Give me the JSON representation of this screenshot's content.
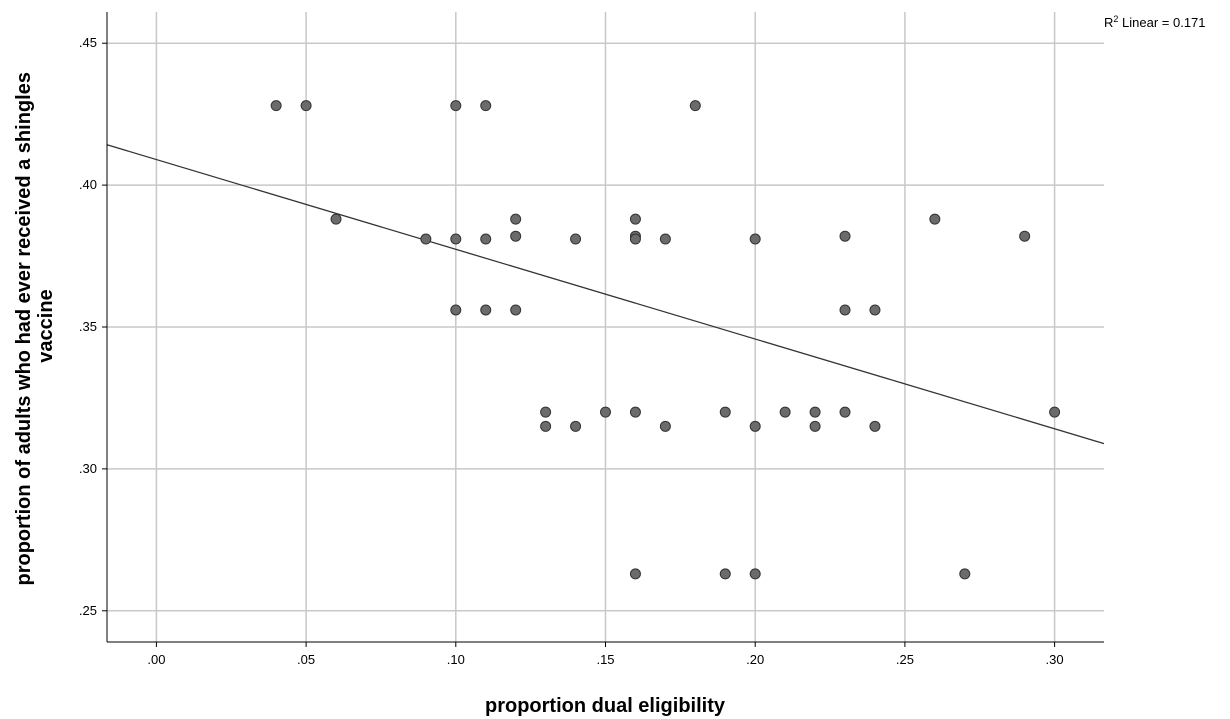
{
  "chart_data": {
    "type": "scatter",
    "title": "",
    "xlabel": "proportion dual eligibility",
    "ylabel_lines": [
      "proportion of adults who had ever received a shingles",
      "vaccine"
    ],
    "xlim": [
      -0.0165,
      0.3165
    ],
    "ylim": [
      0.239,
      0.461
    ],
    "x_ticks": [
      0.0,
      0.05,
      0.1,
      0.15,
      0.2,
      0.25,
      0.3
    ],
    "x_tick_labels": [
      ".00",
      ".05",
      ".10",
      ".15",
      ".20",
      ".25",
      ".30"
    ],
    "y_ticks": [
      0.25,
      0.3,
      0.35,
      0.4,
      0.45
    ],
    "y_tick_labels": [
      ".25",
      ".30",
      ".35",
      ".40",
      ".45"
    ],
    "grid": true,
    "fit_line": {
      "label_prefix": "R",
      "label_sup": "2",
      "label_suffix": " Linear = 0.171",
      "intercept": 0.409,
      "slope": -0.3162
    },
    "points": [
      {
        "x": 0.04,
        "y": 0.428
      },
      {
        "x": 0.05,
        "y": 0.428
      },
      {
        "x": 0.1,
        "y": 0.428
      },
      {
        "x": 0.11,
        "y": 0.428
      },
      {
        "x": 0.18,
        "y": 0.428
      },
      {
        "x": 0.06,
        "y": 0.388
      },
      {
        "x": 0.12,
        "y": 0.388
      },
      {
        "x": 0.16,
        "y": 0.388
      },
      {
        "x": 0.26,
        "y": 0.388
      },
      {
        "x": 0.12,
        "y": 0.382
      },
      {
        "x": 0.16,
        "y": 0.382
      },
      {
        "x": 0.23,
        "y": 0.382
      },
      {
        "x": 0.29,
        "y": 0.382
      },
      {
        "x": 0.09,
        "y": 0.381
      },
      {
        "x": 0.1,
        "y": 0.381
      },
      {
        "x": 0.11,
        "y": 0.381
      },
      {
        "x": 0.14,
        "y": 0.381
      },
      {
        "x": 0.16,
        "y": 0.381
      },
      {
        "x": 0.17,
        "y": 0.381
      },
      {
        "x": 0.2,
        "y": 0.381
      },
      {
        "x": 0.1,
        "y": 0.356
      },
      {
        "x": 0.11,
        "y": 0.356
      },
      {
        "x": 0.12,
        "y": 0.356
      },
      {
        "x": 0.23,
        "y": 0.356
      },
      {
        "x": 0.24,
        "y": 0.356
      },
      {
        "x": 0.13,
        "y": 0.32
      },
      {
        "x": 0.15,
        "y": 0.32
      },
      {
        "x": 0.16,
        "y": 0.32
      },
      {
        "x": 0.19,
        "y": 0.32
      },
      {
        "x": 0.21,
        "y": 0.32
      },
      {
        "x": 0.22,
        "y": 0.32
      },
      {
        "x": 0.23,
        "y": 0.32
      },
      {
        "x": 0.3,
        "y": 0.32
      },
      {
        "x": 0.13,
        "y": 0.315
      },
      {
        "x": 0.14,
        "y": 0.315
      },
      {
        "x": 0.17,
        "y": 0.315
      },
      {
        "x": 0.2,
        "y": 0.315
      },
      {
        "x": 0.22,
        "y": 0.315
      },
      {
        "x": 0.24,
        "y": 0.315
      },
      {
        "x": 0.16,
        "y": 0.263
      },
      {
        "x": 0.19,
        "y": 0.263
      },
      {
        "x": 0.2,
        "y": 0.263
      },
      {
        "x": 0.27,
        "y": 0.263
      }
    ],
    "colors": {
      "grid": "#c8c8c8",
      "axis": "#000000",
      "point_fill": "#6b6b6b",
      "point_stroke": "#333333",
      "fit_line": "#333333"
    }
  }
}
